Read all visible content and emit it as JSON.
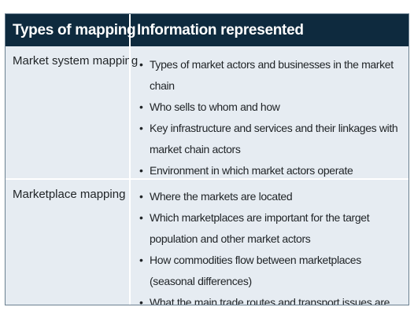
{
  "header": {
    "col1": "Types of mapping",
    "col2": "Information represented"
  },
  "rows": [
    {
      "type": "Market system mapping",
      "items": [
        "Types of market actors and businesses in the market chain",
        "Who sells to whom and how",
        "Key infrastructure and services and their linkages with market chain actors",
        "Environment in which market actors operate"
      ]
    },
    {
      "type": "Marketplace mapping",
      "items": [
        "Where the markets are located",
        "Which marketplaces are important for the target population and other market actors",
        "How commodities flow between marketplaces (seasonal differences)",
        "What the main trade routes and transport issues are"
      ]
    }
  ],
  "colors": {
    "header_bg": "#0e2a3e",
    "row_bg": "#e6ecf2",
    "border": "#6b8090"
  }
}
